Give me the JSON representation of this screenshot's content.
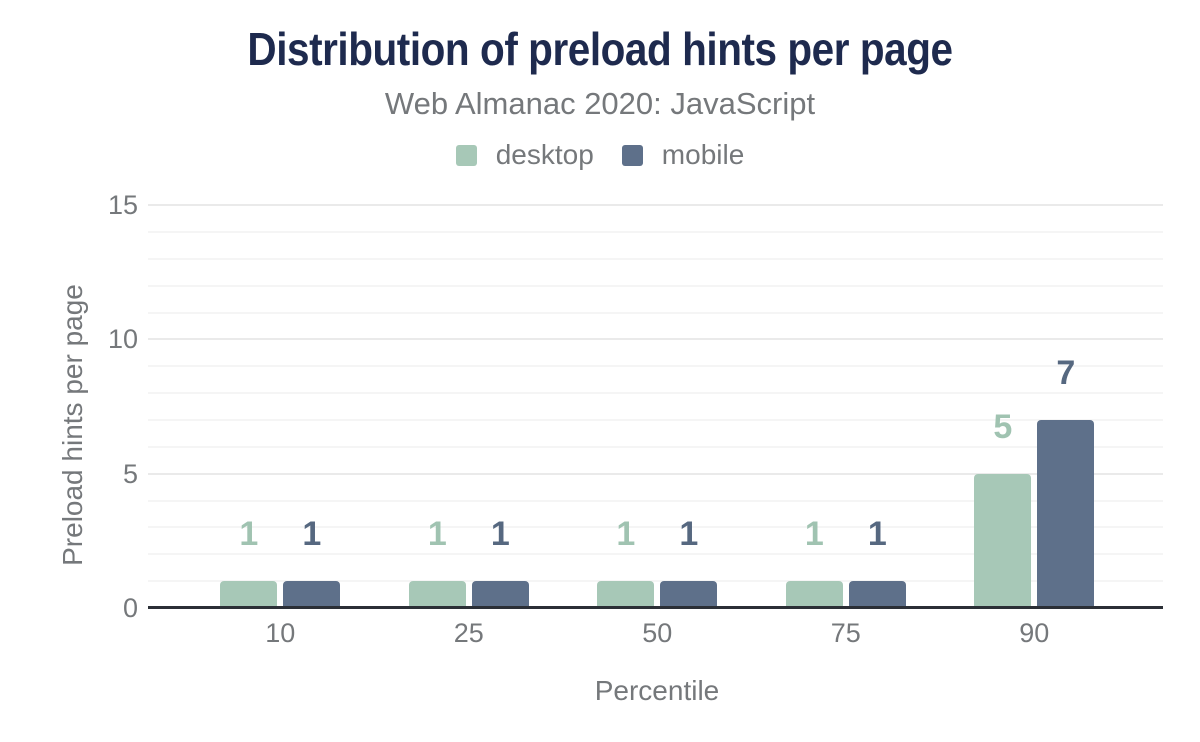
{
  "title": "Distribution of preload hints per page",
  "subtitle": "Web Almanac 2020: JavaScript",
  "chart_data": {
    "type": "bar",
    "title": "Distribution of preload hints per page",
    "subtitle": "Web Almanac 2020: JavaScript",
    "categories": [
      10,
      25,
      50,
      75,
      90
    ],
    "series": [
      {
        "name": "desktop",
        "values": [
          1,
          1,
          1,
          1,
          5
        ],
        "color": "#a7c8b7",
        "label_color": "#a0c3b1"
      },
      {
        "name": "mobile",
        "values": [
          1,
          1,
          1,
          1,
          7
        ],
        "color": "#5e708a",
        "label_color": "#566880"
      }
    ],
    "xlabel": "Percentile",
    "ylabel": "Preload hints per page",
    "ylim": [
      0,
      15
    ],
    "y_major_ticks": [
      0,
      5,
      10,
      15
    ],
    "y_minor_step": 1,
    "grid": true,
    "legend_position": "top",
    "value_labels": true
  },
  "colors": {
    "background": "#ffffff",
    "title_navy": "#1e2a4e",
    "text_gray": "#75787b",
    "axis_line": "#2b2f36",
    "grid_major": "#eaeaea",
    "grid_minor": "#f5f5f5"
  }
}
